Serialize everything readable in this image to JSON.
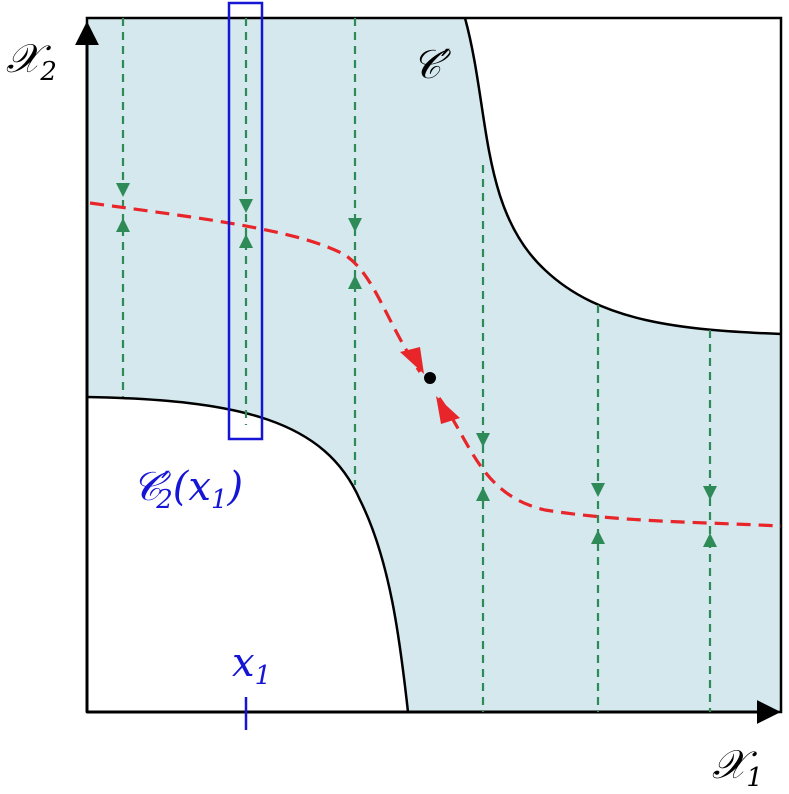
{
  "labels": {
    "axis_x": "𝒳",
    "axis_x_sub": "1",
    "axis_y": "𝒳",
    "axis_y_sub": "2",
    "region": "𝒞′",
    "slice_main": "𝒞′",
    "slice_sub": "2",
    "slice_arg": "(x",
    "slice_arg_sub": "1",
    "slice_close": ")",
    "tick": "x",
    "tick_sub": "1"
  },
  "colors": {
    "region_fill": "#d4e8ee",
    "boundary": "#000000",
    "flow": "#2e8b57",
    "curve": "#e8262a",
    "highlight": "#1515d6"
  }
}
